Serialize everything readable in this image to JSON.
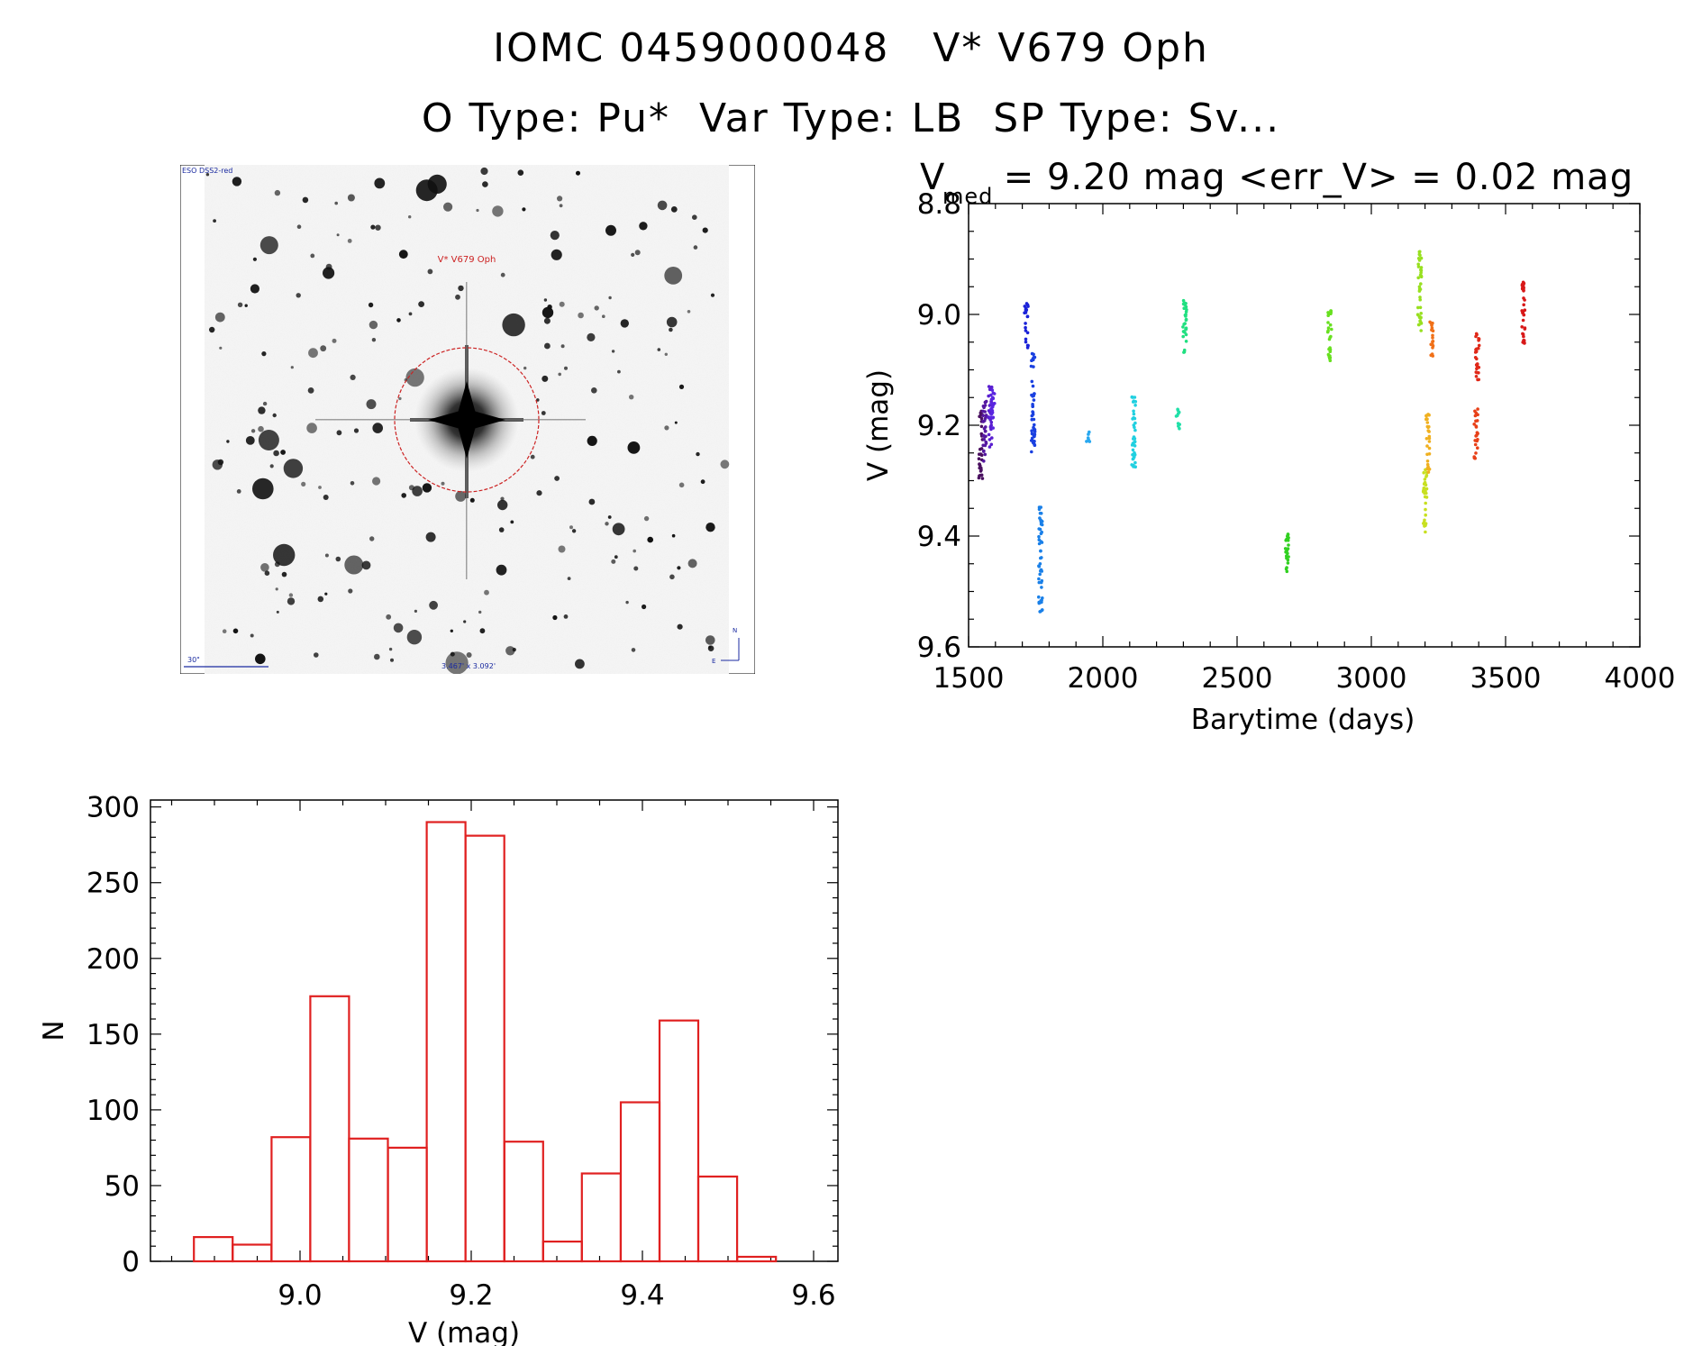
{
  "header": {
    "line1": "IOMC 0459000048   V* V679 Oph",
    "line2": "O Type: Pu*  Var Type: LB  SP Type: Sv..."
  },
  "sky_image": {
    "survey_label": "ESO DSS2-red",
    "target_label": "V* V679 Oph",
    "scale_label": "30\"",
    "size_label": "3.467' x 3.092'",
    "compass_n": "N",
    "compass_e": "E"
  },
  "colors": {
    "histogram": "#e02020",
    "target_circle": "#cc2222",
    "annotation_blue": "#1a2aa0"
  },
  "chart_data": [
    {
      "type": "scatter",
      "title_base": "V",
      "title_sub": "med",
      "title_rest": " = 9.20 mag <err_V> = 0.02 mag",
      "xlabel": "Barytime (days)",
      "ylabel": "V (mag)",
      "xlim": [
        1500,
        4000
      ],
      "ylim": [
        9.6,
        8.8
      ],
      "xticks": [
        "1500",
        "2000",
        "2500",
        "3000",
        "3500",
        "4000"
      ],
      "yticks": [
        "8.8",
        "9.0",
        "9.2",
        "9.4",
        "9.6"
      ],
      "series": [
        {
          "x": 1545,
          "vmin": 9.17,
          "vmax": 9.3,
          "color": "#4a1060"
        },
        {
          "x": 1560,
          "vmin": 9.15,
          "vmax": 9.27,
          "color": "#5518a0"
        },
        {
          "x": 1580,
          "vmin": 9.13,
          "vmax": 9.24,
          "color": "#5a1fd0"
        },
        {
          "x": 1590,
          "vmin": 9.13,
          "vmax": 9.21,
          "color": "#5a26e0"
        },
        {
          "x": 1715,
          "vmin": 8.98,
          "vmax": 9.06,
          "color": "#1a22d8"
        },
        {
          "x": 1740,
          "vmin": 9.07,
          "vmax": 9.25,
          "color": "#1a40e0"
        },
        {
          "x": 1768,
          "vmin": 9.34,
          "vmax": 9.54,
          "color": "#1a80e8"
        },
        {
          "x": 1945,
          "vmin": 9.21,
          "vmax": 9.23,
          "color": "#28a8f0"
        },
        {
          "x": 2115,
          "vmin": 9.14,
          "vmax": 9.28,
          "color": "#20d0e0"
        },
        {
          "x": 2280,
          "vmin": 9.17,
          "vmax": 9.21,
          "color": "#20e0a8"
        },
        {
          "x": 2305,
          "vmin": 8.97,
          "vmax": 9.08,
          "color": "#20e080"
        },
        {
          "x": 2685,
          "vmin": 9.39,
          "vmax": 9.47,
          "color": "#30d020"
        },
        {
          "x": 2845,
          "vmin": 8.99,
          "vmax": 9.09,
          "color": "#68e020"
        },
        {
          "x": 3180,
          "vmin": 8.88,
          "vmax": 9.03,
          "color": "#98e020"
        },
        {
          "x": 3200,
          "vmin": 9.28,
          "vmax": 9.4,
          "color": "#c8e020"
        },
        {
          "x": 3210,
          "vmin": 9.18,
          "vmax": 9.29,
          "color": "#f0b020"
        },
        {
          "x": 3225,
          "vmin": 9.01,
          "vmax": 9.08,
          "color": "#f07018"
        },
        {
          "x": 3390,
          "vmin": 9.17,
          "vmax": 9.26,
          "color": "#e84018"
        },
        {
          "x": 3395,
          "vmin": 9.03,
          "vmax": 9.13,
          "color": "#e02818"
        },
        {
          "x": 3565,
          "vmin": 8.94,
          "vmax": 9.06,
          "color": "#d81818"
        }
      ]
    },
    {
      "type": "bar",
      "xlabel": "V (mag)",
      "ylabel": "N",
      "xlim": [
        0,
        1
      ],
      "ylim": [
        0,
        300
      ],
      "xticks": [
        "9.0",
        "9.2",
        "9.4",
        "9.6"
      ],
      "yticks": [
        "0",
        "50",
        "100",
        "150",
        "200",
        "250",
        "300"
      ],
      "bin_edges": [
        8.876,
        8.9213,
        8.9667,
        9.012,
        9.0573,
        9.1027,
        9.148,
        9.1933,
        9.2387,
        9.284,
        9.3293,
        9.3747,
        9.42,
        9.4653,
        9.5107,
        9.556
      ],
      "values": [
        16,
        11,
        82,
        175,
        81,
        75,
        290,
        281,
        79,
        13,
        58,
        105,
        159,
        56,
        3
      ]
    }
  ]
}
